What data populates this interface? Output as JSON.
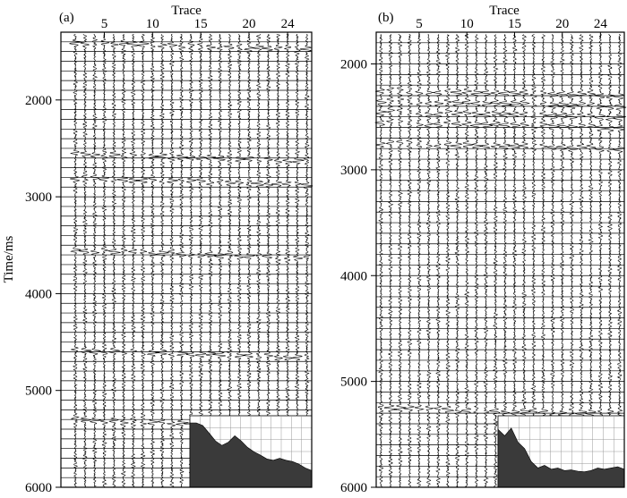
{
  "figure": {
    "ylabel": "Time/ms"
  },
  "chart_data": [
    {
      "type": "seismic-wiggle",
      "panel_label": "(a)",
      "title": "",
      "xlabel": "Trace",
      "ylabel": "Time/ms",
      "x_ticks": [
        5,
        10,
        15,
        20,
        24
      ],
      "x_tick_labels": [
        "5",
        "10",
        "15",
        "20",
        "24"
      ],
      "xlim": [
        0.5,
        26.5
      ],
      "trace_count": 26,
      "y_ticks": [
        2000,
        3000,
        4000,
        5000,
        6000
      ],
      "y_tick_labels": [
        "2000",
        "3000",
        "4000",
        "5000",
        "6000"
      ],
      "ylim": [
        1300,
        6000
      ],
      "strong_events_ms": [
        1400,
        2550,
        2800,
        3550,
        4580,
        5300
      ],
      "inset_spectrum": {
        "type": "bar",
        "relative_amplitude": [
          1.0,
          1.0,
          0.96,
          0.84,
          0.72,
          0.65,
          0.7,
          0.8,
          0.72,
          0.62,
          0.55,
          0.5,
          0.44,
          0.42,
          0.45,
          0.42,
          0.4,
          0.36,
          0.3,
          0.26
        ]
      }
    },
    {
      "type": "seismic-wiggle",
      "panel_label": "(b)",
      "title": "",
      "xlabel": "Trace",
      "ylabel": "",
      "x_ticks": [
        5,
        10,
        15,
        20,
        24
      ],
      "x_tick_labels": [
        "5",
        "10",
        "15",
        "20",
        "24"
      ],
      "xlim": [
        0.5,
        26.5
      ],
      "trace_count": 26,
      "y_ticks": [
        2000,
        3000,
        4000,
        5000,
        6000
      ],
      "y_tick_labels": [
        "2000",
        "3000",
        "4000",
        "5000",
        "6000"
      ],
      "ylim": [
        1700,
        6000
      ],
      "strong_events_ms": [
        2250,
        2350,
        2450,
        2550,
        2750,
        5250
      ],
      "inset_spectrum": {
        "type": "bar",
        "relative_amplitude": [
          0.9,
          0.8,
          0.92,
          0.7,
          0.6,
          0.4,
          0.3,
          0.34,
          0.28,
          0.3,
          0.26,
          0.27,
          0.25,
          0.24,
          0.26,
          0.3,
          0.28,
          0.3,
          0.32,
          0.28
        ]
      }
    }
  ]
}
